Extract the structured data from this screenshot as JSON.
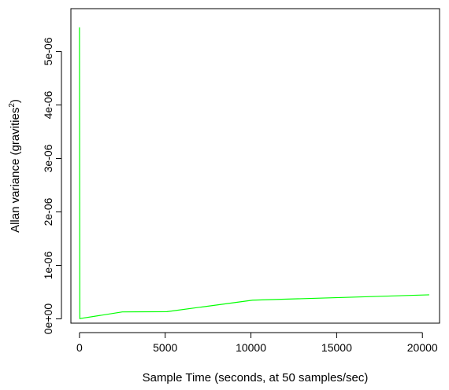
{
  "chart_data": {
    "type": "line",
    "title": "",
    "xlabel": "Sample Time (seconds, at 50 samples/sec)",
    "ylabel": {
      "text": "Allan variance (gravities",
      "superscript": "2",
      "suffix": ")"
    },
    "xlim": [
      -500,
      21000
    ],
    "ylim": [
      -8e-08,
      5.8e-06
    ],
    "x_ticks": [
      {
        "value": 0,
        "label": "0"
      },
      {
        "value": 5000,
        "label": "5000"
      },
      {
        "value": 10000,
        "label": "10000"
      },
      {
        "value": 15000,
        "label": "15000"
      },
      {
        "value": 20000,
        "label": "20000"
      }
    ],
    "y_ticks": [
      {
        "value": 0,
        "label": "0e+00"
      },
      {
        "value": 1e-06,
        "label": "1e-06"
      },
      {
        "value": 2e-06,
        "label": "2e-06"
      },
      {
        "value": 3e-06,
        "label": "3e-06"
      },
      {
        "value": 4e-06,
        "label": "4e-06"
      },
      {
        "value": 5e-06,
        "label": "5e-06"
      }
    ],
    "grid": false,
    "legend": "none",
    "series": [
      {
        "color": "#00ff00",
        "x": [
          0,
          20,
          2500,
          5100,
          10100,
          20400
        ],
        "y": [
          5.45e-06,
          5e-09,
          1.3e-07,
          1.35e-07,
          3.5e-07,
          4.5e-07
        ]
      }
    ]
  }
}
